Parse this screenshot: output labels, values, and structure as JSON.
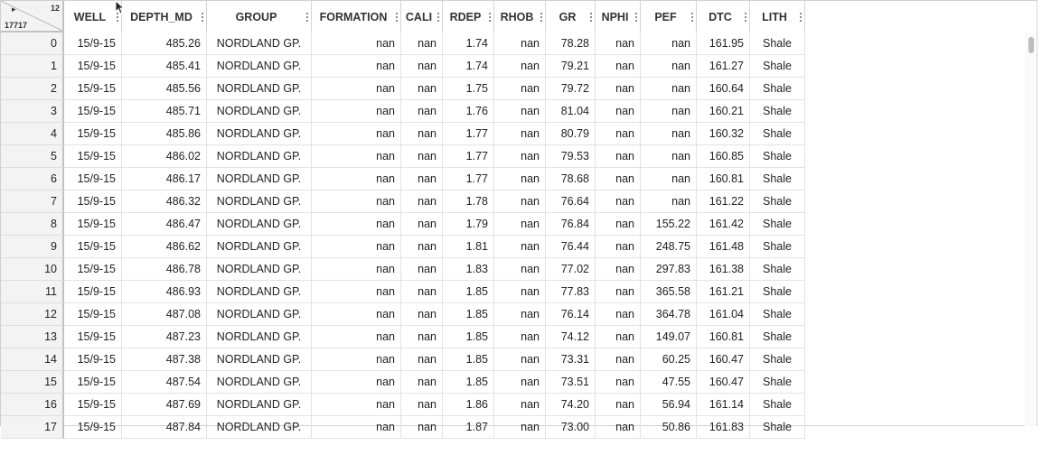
{
  "corner": {
    "expand_glyph": "▸",
    "column_count": "12",
    "row_count": "17717"
  },
  "columns": [
    {
      "key": "WELL",
      "label": "WELL"
    },
    {
      "key": "DEPTH_MD",
      "label": "DEPTH_MD"
    },
    {
      "key": "GROUP",
      "label": "GROUP"
    },
    {
      "key": "FORMATION",
      "label": "FORMATION"
    },
    {
      "key": "CALI",
      "label": "CALI"
    },
    {
      "key": "RDEP",
      "label": "RDEP"
    },
    {
      "key": "RHOB",
      "label": "RHOB"
    },
    {
      "key": "GR",
      "label": "GR"
    },
    {
      "key": "NPHI",
      "label": "NPHI"
    },
    {
      "key": "PEF",
      "label": "PEF"
    },
    {
      "key": "DTC",
      "label": "DTC"
    },
    {
      "key": "LITH",
      "label": "LITH"
    }
  ],
  "rows": [
    {
      "index": "0",
      "cells": [
        "15/9-15",
        "485.26",
        "NORDLAND GP.",
        "nan",
        "nan",
        "1.74",
        "nan",
        "78.28",
        "nan",
        "nan",
        "161.95",
        "Shale"
      ]
    },
    {
      "index": "1",
      "cells": [
        "15/9-15",
        "485.41",
        "NORDLAND GP.",
        "nan",
        "nan",
        "1.74",
        "nan",
        "79.21",
        "nan",
        "nan",
        "161.27",
        "Shale"
      ]
    },
    {
      "index": "2",
      "cells": [
        "15/9-15",
        "485.56",
        "NORDLAND GP.",
        "nan",
        "nan",
        "1.75",
        "nan",
        "79.72",
        "nan",
        "nan",
        "160.64",
        "Shale"
      ]
    },
    {
      "index": "3",
      "cells": [
        "15/9-15",
        "485.71",
        "NORDLAND GP.",
        "nan",
        "nan",
        "1.76",
        "nan",
        "81.04",
        "nan",
        "nan",
        "160.21",
        "Shale"
      ]
    },
    {
      "index": "4",
      "cells": [
        "15/9-15",
        "485.86",
        "NORDLAND GP.",
        "nan",
        "nan",
        "1.77",
        "nan",
        "80.79",
        "nan",
        "nan",
        "160.32",
        "Shale"
      ]
    },
    {
      "index": "5",
      "cells": [
        "15/9-15",
        "486.02",
        "NORDLAND GP.",
        "nan",
        "nan",
        "1.77",
        "nan",
        "79.53",
        "nan",
        "nan",
        "160.85",
        "Shale"
      ]
    },
    {
      "index": "6",
      "cells": [
        "15/9-15",
        "486.17",
        "NORDLAND GP.",
        "nan",
        "nan",
        "1.77",
        "nan",
        "78.68",
        "nan",
        "nan",
        "160.81",
        "Shale"
      ]
    },
    {
      "index": "7",
      "cells": [
        "15/9-15",
        "486.32",
        "NORDLAND GP.",
        "nan",
        "nan",
        "1.78",
        "nan",
        "76.64",
        "nan",
        "nan",
        "161.22",
        "Shale"
      ]
    },
    {
      "index": "8",
      "cells": [
        "15/9-15",
        "486.47",
        "NORDLAND GP.",
        "nan",
        "nan",
        "1.79",
        "nan",
        "76.84",
        "nan",
        "155.22",
        "161.42",
        "Shale"
      ]
    },
    {
      "index": "9",
      "cells": [
        "15/9-15",
        "486.62",
        "NORDLAND GP.",
        "nan",
        "nan",
        "1.81",
        "nan",
        "76.44",
        "nan",
        "248.75",
        "161.48",
        "Shale"
      ]
    },
    {
      "index": "10",
      "cells": [
        "15/9-15",
        "486.78",
        "NORDLAND GP.",
        "nan",
        "nan",
        "1.83",
        "nan",
        "77.02",
        "nan",
        "297.83",
        "161.38",
        "Shale"
      ]
    },
    {
      "index": "11",
      "cells": [
        "15/9-15",
        "486.93",
        "NORDLAND GP.",
        "nan",
        "nan",
        "1.85",
        "nan",
        "77.83",
        "nan",
        "365.58",
        "161.21",
        "Shale"
      ]
    },
    {
      "index": "12",
      "cells": [
        "15/9-15",
        "487.08",
        "NORDLAND GP.",
        "nan",
        "nan",
        "1.85",
        "nan",
        "76.14",
        "nan",
        "364.78",
        "161.04",
        "Shale"
      ]
    },
    {
      "index": "13",
      "cells": [
        "15/9-15",
        "487.23",
        "NORDLAND GP.",
        "nan",
        "nan",
        "1.85",
        "nan",
        "74.12",
        "nan",
        "149.07",
        "160.81",
        "Shale"
      ]
    },
    {
      "index": "14",
      "cells": [
        "15/9-15",
        "487.38",
        "NORDLAND GP.",
        "nan",
        "nan",
        "1.85",
        "nan",
        "73.31",
        "nan",
        "60.25",
        "160.47",
        "Shale"
      ]
    },
    {
      "index": "15",
      "cells": [
        "15/9-15",
        "487.54",
        "NORDLAND GP.",
        "nan",
        "nan",
        "1.85",
        "nan",
        "73.51",
        "nan",
        "47.55",
        "160.47",
        "Shale"
      ]
    },
    {
      "index": "16",
      "cells": [
        "15/9-15",
        "487.69",
        "NORDLAND GP.",
        "nan",
        "nan",
        "1.86",
        "nan",
        "74.20",
        "nan",
        "56.94",
        "161.14",
        "Shale"
      ]
    },
    {
      "index": "17",
      "cells": [
        "15/9-15",
        "487.84",
        "NORDLAND GP.",
        "nan",
        "nan",
        "1.87",
        "nan",
        "73.00",
        "nan",
        "50.86",
        "161.83",
        "Shale"
      ]
    }
  ]
}
